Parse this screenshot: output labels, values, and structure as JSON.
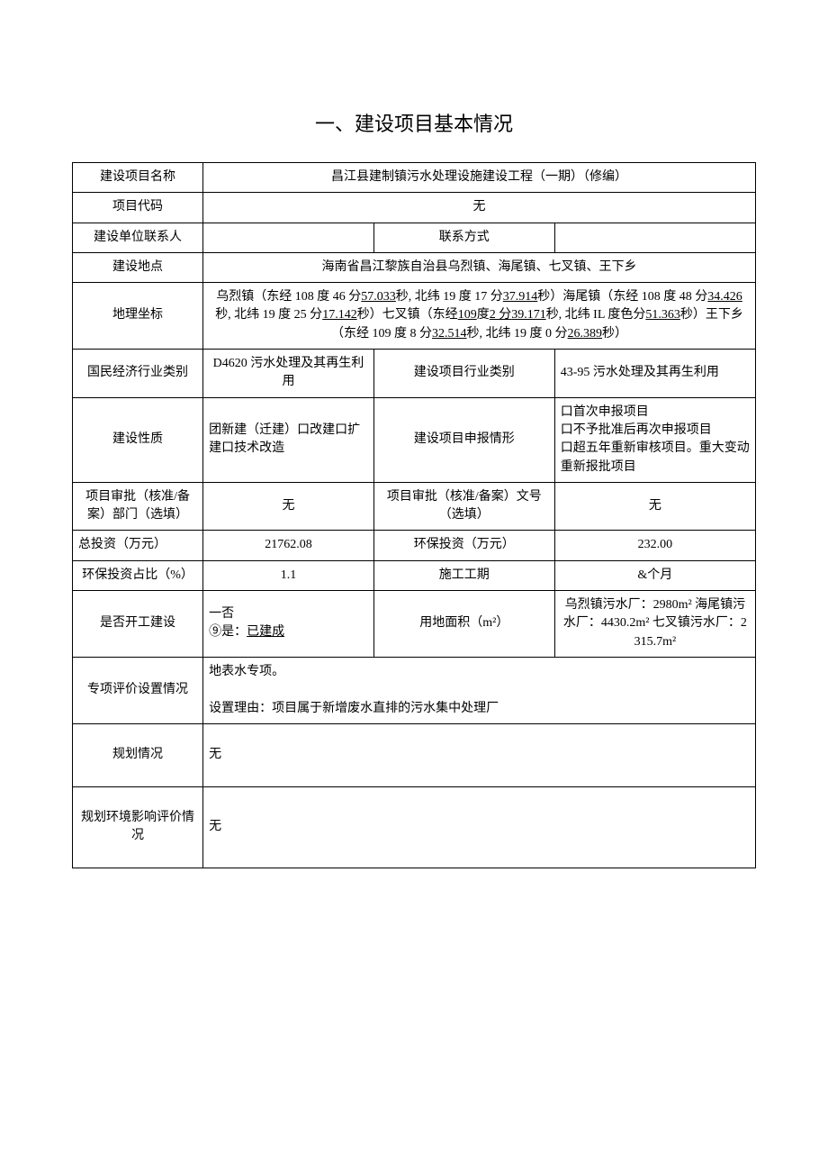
{
  "heading": "一、建设项目基本情况",
  "rows": {
    "project_name": {
      "label": "建设项目名称",
      "value": "昌江县建制镇污水处理设施建设工程（一期）（修编）"
    },
    "project_code": {
      "label": "项目代码",
      "value": "无"
    },
    "contact": {
      "label": "建设单位联系人",
      "value": "",
      "label2": "联系方式",
      "value2": ""
    },
    "location": {
      "label": "建设地点",
      "value": "海南省昌江黎族自治县乌烈镇、海尾镇、七叉镇、王下乡"
    },
    "coords": {
      "label": "地理坐标",
      "prefix1": "乌烈镇（东经 108 度 46 分",
      "u1": "57.033",
      "mid1": "秒, 北纬 19 度 17 分",
      "u2": "37.914",
      "mid2": "秒）海尾镇（东经 108 度 48 分",
      "u3": "34.426",
      "mid3": "秒, 北纬 19 度 25 分",
      "u4": "17.142",
      "mid4": "秒）七叉镇（东经",
      "u5": "109",
      "mid5": "度",
      "u6": "2 分",
      "u7": "39.171",
      "mid6": "秒, 北纬 IL 度色分",
      "u8": "51.363",
      "mid7": "秒）王下乡（东经 109 度 8 分",
      "u9": "32.514",
      "mid8": "秒, 北纬 19 度 0 分",
      "u10": "26.389",
      "mid9": "秒）"
    },
    "industry": {
      "label1": "国民经济行业类别",
      "value1": "D4620 污水处理及其再生利用",
      "label2": "建设项目行业类别",
      "value2": "43-95 污水处理及其再生利用"
    },
    "nature": {
      "label1": "建设性质",
      "value1": "团新建（迁建）口改建口扩建口技术改造",
      "label2": "建设项目申报情形",
      "value2": "口首次申报项目\n口不予批准后再次申报项目\n口超五年重新审核项目。重大变动重新报批项目"
    },
    "approval": {
      "label1": "项目审批（核准/备案）部门（选填）",
      "value1": "无",
      "label2": "项目审批（核准/备案）文号（选填）",
      "value2": "无"
    },
    "invest": {
      "label1": "总投资（万元）",
      "value1": "21762.08",
      "label2": "环保投资（万元）",
      "value2": "232.00"
    },
    "ratio": {
      "label1": "环保投资占比（%）",
      "value1": "1.1",
      "label2": "施工工期",
      "value2": "&个月"
    },
    "started": {
      "label1": "是否开工建设",
      "value1_line1": "一否",
      "value1_line2a": "⑨是：",
      "value1_line2b": "已建成",
      "label2": "用地面积（m²）",
      "value2": "乌烈镇污水厂：2980m² 海尾镇污水厂：4430.2m² 七叉镇污水厂：2315.7m²"
    },
    "special": {
      "label": "专项评价设置情况",
      "line1": "地表水专项。",
      "line2": "设置理由：项目属于新增废水直排的污水集中处理厂"
    },
    "plan": {
      "label": "规划情况",
      "value": "无"
    },
    "planeia": {
      "label": "规划环境影响评价情况",
      "value": "无"
    }
  }
}
